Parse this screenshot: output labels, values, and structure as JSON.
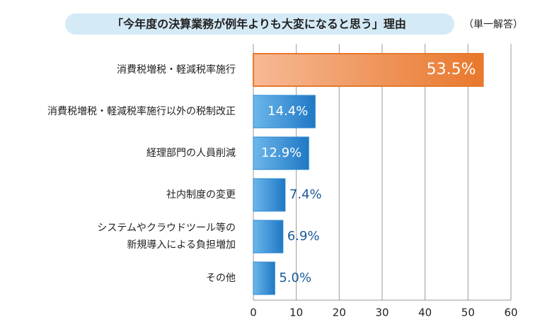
{
  "chart_data": {
    "type": "hbar",
    "title": "「今年度の決算業務が例年よりも大変になると思う」理由",
    "subtitle": "（単一解答）",
    "categories": [
      "消費税増税・軽減税率施行",
      "消費税増税・軽減税率施行以外の税制改正",
      "経理部門の人員削減",
      "社内制度の変更",
      "システムやクラウドツール等の\n新規導入による負担増加",
      "その他"
    ],
    "values": [
      53.5,
      14.4,
      12.9,
      7.4,
      6.9,
      5.0
    ],
    "value_labels": [
      "53.5%",
      "14.4%",
      "12.9%",
      "7.4%",
      "6.9%",
      "5.0%"
    ],
    "colors": [
      "#e8782c",
      "#2a86d0",
      "#2a86d0",
      "#2a86d0",
      "#2a86d0",
      "#2a86d0"
    ],
    "xlim": [
      0,
      60
    ],
    "xticks": [
      0,
      10,
      20,
      30,
      40,
      50,
      60
    ],
    "grid": true
  }
}
